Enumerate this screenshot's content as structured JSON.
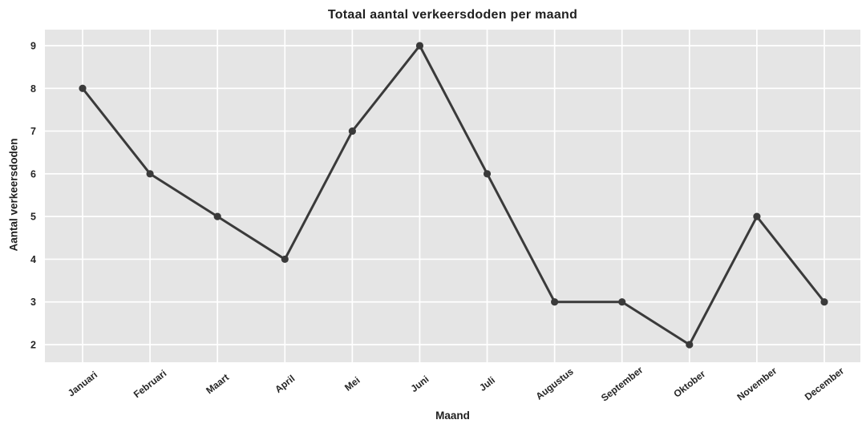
{
  "chart_data": {
    "type": "line",
    "title": "Totaal aantal verkeersdoden per maand",
    "xlabel": "Maand",
    "ylabel": "Aantal verkeersdoden",
    "categories": [
      "Januari",
      "Februari",
      "Maart",
      "April",
      "Mei",
      "Juni",
      "Juli",
      "Augustus",
      "September",
      "Oktober",
      "November",
      "December"
    ],
    "values": [
      8,
      6,
      5,
      4,
      7,
      9,
      6,
      3,
      3,
      2,
      5,
      3
    ],
    "yticks": [
      2,
      3,
      4,
      5,
      6,
      7,
      8,
      9
    ],
    "ylim": [
      2,
      9
    ],
    "grid": true,
    "legend": false,
    "x_tick_rotation_deg": 38,
    "colors": {
      "line": "#3a3a3a",
      "marker": "#3a3a3a",
      "plot_background": "#e5e5e5",
      "grid": "#ffffff",
      "text": "#262626"
    }
  }
}
